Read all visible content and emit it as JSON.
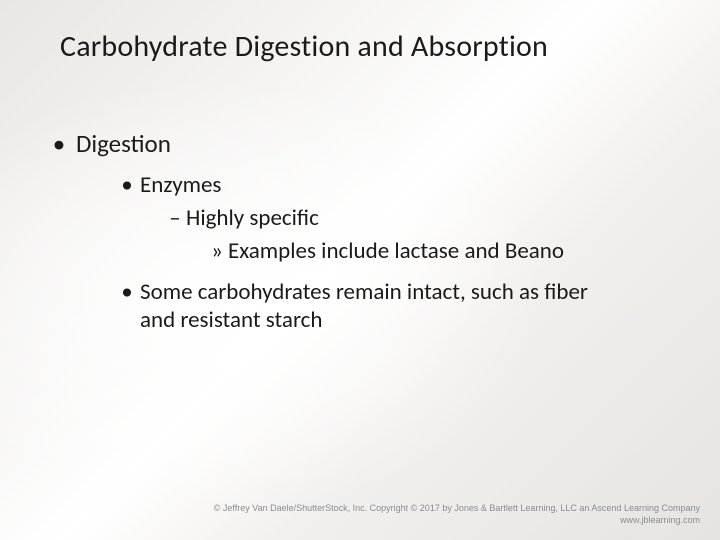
{
  "title": "Carbohydrate Digestion and Absorption",
  "bullets": {
    "l1": "Digestion",
    "l2a": "Enzymes",
    "l3": "Highly specific",
    "l4": "Examples include lactase and Beano",
    "l2b": "Some carbohydrates remain intact, such as fiber and resistant starch"
  },
  "markers": {
    "dot": "•",
    "dash": "–",
    "raquo": "»"
  },
  "footer": {
    "line1": "© Jeffrey Van Daele/ShutterStock, Inc. Copyright © 2017 by Jones & Bartlett Learning, LLC an Ascend Learning Company",
    "line2": "www.jblearning.com"
  },
  "colors": {
    "text": "#1a1a1a",
    "footer": "#8a8c8f",
    "bg_light": "#ffffff",
    "bg_mid": "#f2f0ee",
    "bg_dark": "#e6e3e0"
  },
  "fonts": {
    "title_size_pt": 30,
    "body_size_pt": 23,
    "l1_size_pt": 25,
    "footer_size_pt": 9
  }
}
